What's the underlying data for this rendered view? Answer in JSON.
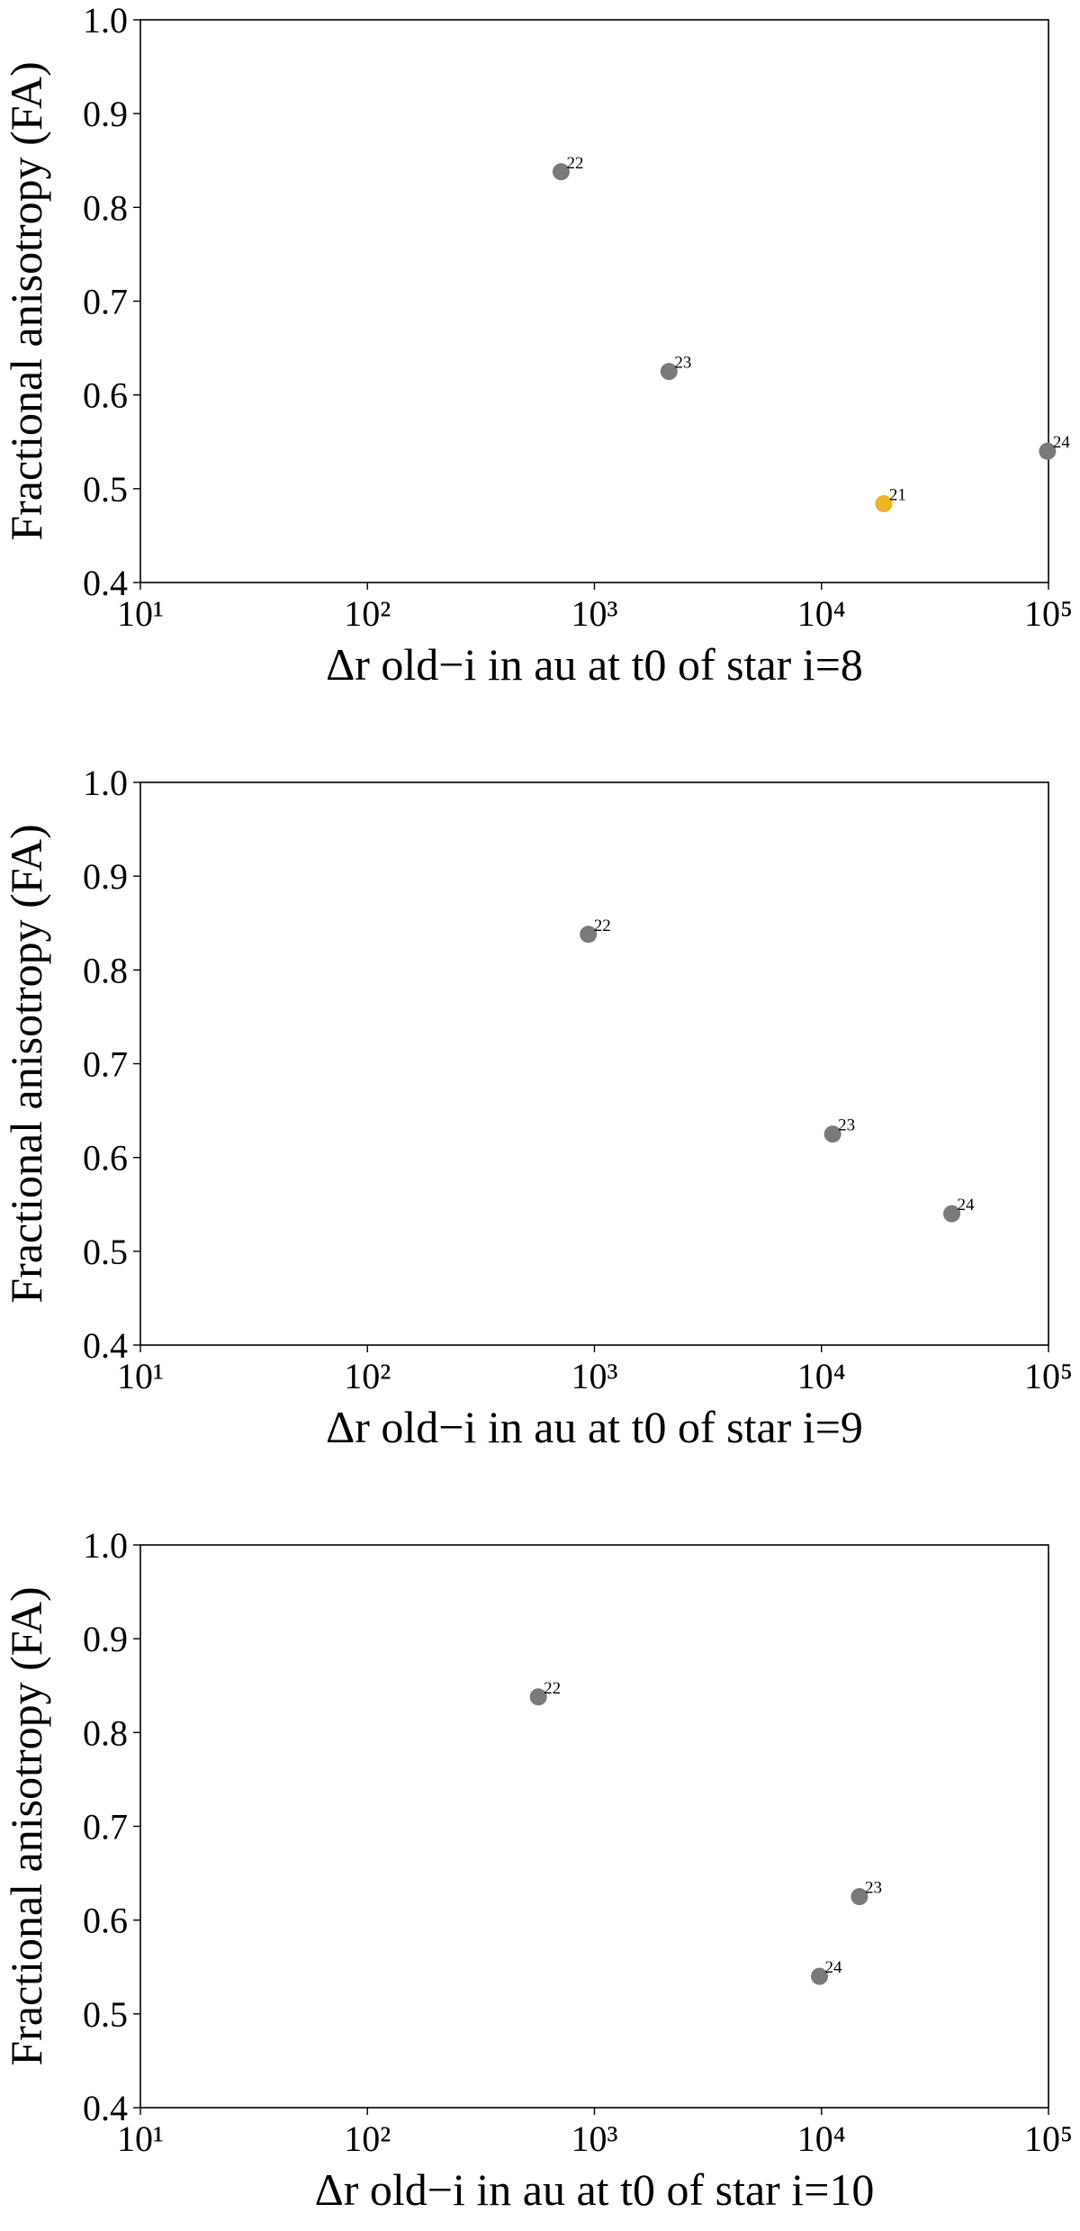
{
  "chart_data": [
    {
      "type": "scatter",
      "xlabel": "Δr old−i in au at t0 of star i=8",
      "ylabel": "Fractional anisotropy (FA)",
      "xscale": "log",
      "xlim": [
        10,
        100000
      ],
      "xticks": [
        {
          "value": 10,
          "label": "10¹"
        },
        {
          "value": 100,
          "label": "10²"
        },
        {
          "value": 1000,
          "label": "10³"
        },
        {
          "value": 10000,
          "label": "10⁴"
        },
        {
          "value": 100000,
          "label": "10⁵"
        }
      ],
      "ylim": [
        0.4,
        1.0
      ],
      "yticks": [
        0.4,
        0.5,
        0.6,
        0.7,
        0.8,
        0.9,
        {
          "value": 1,
          "label": "1.0"
        }
      ],
      "x": [
        713,
        2130,
        18800,
        99000
      ],
      "values": [
        0.838,
        0.625,
        0.484,
        0.54
      ],
      "labels": [
        "22",
        "23",
        "21",
        "24"
      ],
      "colors": [
        "#7a7a7a",
        "#7a7a7a",
        "#f0b323",
        "#7a7a7a"
      ]
    },
    {
      "type": "scatter",
      "xlabel": "Δr old−i in au at t0 of star i=9",
      "ylabel": "Fractional anisotropy (FA)",
      "xscale": "log",
      "xlim": [
        10,
        100000
      ],
      "xticks": [
        {
          "value": 10,
          "label": "10¹"
        },
        {
          "value": 100,
          "label": "10²"
        },
        {
          "value": 1000,
          "label": "10³"
        },
        {
          "value": 10000,
          "label": "10⁴"
        },
        {
          "value": 100000,
          "label": "10⁵"
        }
      ],
      "ylim": [
        0.4,
        1.0
      ],
      "yticks": [
        0.4,
        0.5,
        0.6,
        0.7,
        0.8,
        0.9,
        {
          "value": 1,
          "label": "1.0"
        }
      ],
      "x": [
        940,
        11200,
        37500
      ],
      "values": [
        0.838,
        0.625,
        0.54
      ],
      "labels": [
        "22",
        "23",
        "24"
      ],
      "colors": [
        "#7a7a7a",
        "#7a7a7a",
        "#7a7a7a"
      ]
    },
    {
      "type": "scatter",
      "xlabel": "Δr old−i in au at t0 of star i=10",
      "ylabel": "Fractional anisotropy (FA)",
      "xscale": "log",
      "xlim": [
        10,
        100000
      ],
      "xticks": [
        {
          "value": 10,
          "label": "10¹"
        },
        {
          "value": 100,
          "label": "10²"
        },
        {
          "value": 1000,
          "label": "10³"
        },
        {
          "value": 10000,
          "label": "10⁴"
        },
        {
          "value": 100000,
          "label": "10⁵"
        }
      ],
      "ylim": [
        0.4,
        1.0
      ],
      "yticks": [
        0.4,
        0.5,
        0.6,
        0.7,
        0.8,
        0.9,
        {
          "value": 1,
          "label": "1.0"
        }
      ],
      "x": [
        566,
        14700,
        9800
      ],
      "values": [
        0.838,
        0.625,
        0.54
      ],
      "labels": [
        "22",
        "23",
        "24"
      ],
      "colors": [
        "#7a7a7a",
        "#7a7a7a",
        "#7a7a7a"
      ]
    }
  ]
}
